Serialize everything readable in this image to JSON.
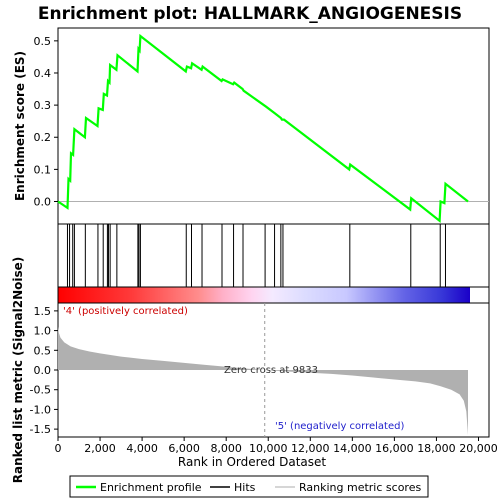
{
  "chart_data": {
    "type": "line",
    "title": "Enrichment plot: HALLMARK_ANGIOGENESIS",
    "colors": {
      "es_line": "#00ff00",
      "hits": "#000000",
      "metric_fill": "#b0b0b0",
      "positive_text": "#cc0000",
      "negative_text": "#2222cc"
    },
    "es_panel": {
      "ylabel": "Enrichment score (ES)",
      "ylim": [
        -0.07,
        0.54
      ],
      "yticks": [
        0.0,
        0.1,
        0.2,
        0.3,
        0.4,
        0.5
      ],
      "ytick_labels": [
        "0.0",
        "0.1",
        "0.2",
        "0.3",
        "0.4",
        "0.5"
      ],
      "points": [
        [
          0,
          0.0
        ],
        [
          450,
          -0.02
        ],
        [
          500,
          0.07
        ],
        [
          580,
          0.065
        ],
        [
          620,
          0.15
        ],
        [
          720,
          0.145
        ],
        [
          780,
          0.225
        ],
        [
          1280,
          0.2
        ],
        [
          1330,
          0.26
        ],
        [
          1880,
          0.235
        ],
        [
          1930,
          0.29
        ],
        [
          2130,
          0.285
        ],
        [
          2180,
          0.335
        ],
        [
          2330,
          0.33
        ],
        [
          2380,
          0.375
        ],
        [
          2450,
          0.37
        ],
        [
          2480,
          0.425
        ],
        [
          2780,
          0.41
        ],
        [
          2830,
          0.455
        ],
        [
          3780,
          0.405
        ],
        [
          3830,
          0.475
        ],
        [
          3880,
          0.47
        ],
        [
          3920,
          0.515
        ],
        [
          6080,
          0.405
        ],
        [
          6130,
          0.42
        ],
        [
          6330,
          0.415
        ],
        [
          6380,
          0.43
        ],
        [
          6830,
          0.41
        ],
        [
          6880,
          0.42
        ],
        [
          7780,
          0.375
        ],
        [
          7830,
          0.38
        ],
        [
          8330,
          0.365
        ],
        [
          8380,
          0.37
        ],
        [
          8780,
          0.35
        ],
        [
          8830,
          0.345
        ],
        [
          9900,
          0.295
        ],
        [
          10300,
          0.275
        ],
        [
          10600,
          0.26
        ],
        [
          10650,
          0.255
        ],
        [
          10750,
          0.255
        ],
        [
          13850,
          0.1
        ],
        [
          13900,
          0.115
        ],
        [
          16750,
          -0.025
        ],
        [
          16800,
          0.01
        ],
        [
          18150,
          -0.06
        ],
        [
          18200,
          0.0
        ],
        [
          18380,
          -0.005
        ],
        [
          18430,
          0.055
        ],
        [
          19500,
          0.0
        ]
      ]
    },
    "hits": [
      450,
      550,
      700,
      780,
      1300,
      1900,
      2150,
      2350,
      2400,
      2480,
      2800,
      3800,
      3850,
      3920,
      6100,
      6350,
      6850,
      7800,
      8350,
      8800,
      9850,
      10300,
      10600,
      10700,
      13880,
      16780,
      18180,
      18430
    ],
    "metric_panel": {
      "ylabel": "Ranked list metric (Signal2Noise)",
      "ylim": [
        -1.7,
        1.7
      ],
      "yticks": [
        -1.5,
        -1.0,
        -0.5,
        0.0,
        0.5,
        1.0,
        1.5
      ],
      "ytick_labels": [
        "-1.5",
        "-1.0",
        "-0.5",
        "0.0",
        "0.5",
        "1.0",
        "1.5"
      ],
      "profile": [
        [
          0,
          1.1
        ],
        [
          40,
          0.95
        ],
        [
          120,
          0.82
        ],
        [
          300,
          0.7
        ],
        [
          600,
          0.6
        ],
        [
          1000,
          0.53
        ],
        [
          1500,
          0.47
        ],
        [
          2000,
          0.42
        ],
        [
          3000,
          0.34
        ],
        [
          4000,
          0.28
        ],
        [
          5000,
          0.23
        ],
        [
          6000,
          0.18
        ],
        [
          7000,
          0.13
        ],
        [
          8000,
          0.08
        ],
        [
          9000,
          0.035
        ],
        [
          9833,
          0.0
        ],
        [
          11000,
          -0.04
        ],
        [
          12000,
          -0.07
        ],
        [
          13000,
          -0.1
        ],
        [
          14000,
          -0.14
        ],
        [
          15000,
          -0.19
        ],
        [
          16000,
          -0.24
        ],
        [
          17000,
          -0.29
        ],
        [
          17700,
          -0.34
        ],
        [
          18200,
          -0.41
        ],
        [
          18700,
          -0.5
        ],
        [
          19100,
          -0.62
        ],
        [
          19300,
          -0.78
        ],
        [
          19420,
          -1.05
        ],
        [
          19500,
          -1.65
        ]
      ]
    },
    "x_axis": {
      "xlabel": "Rank in Ordered Dataset",
      "xlim": [
        0,
        20500
      ],
      "xticks": [
        0,
        2000,
        4000,
        6000,
        8000,
        10000,
        12000,
        14000,
        16000,
        18000,
        20000
      ],
      "xtick_labels": [
        "0",
        "2,000",
        "4,000",
        "6,000",
        "8,000",
        "10,000",
        "12,000",
        "14,000",
        "16,000",
        "18,000",
        "20,000"
      ],
      "n_genes": 19500
    },
    "annotations": {
      "positive": "'4' (positively correlated)",
      "negative": "'5' (negatively correlated)",
      "zero_cross": "Zero cross at 9833",
      "zero_cross_rank": 9833
    },
    "legend": {
      "position": "bottom",
      "items": [
        "Enrichment profile",
        "Hits",
        "Ranking metric scores"
      ]
    }
  }
}
